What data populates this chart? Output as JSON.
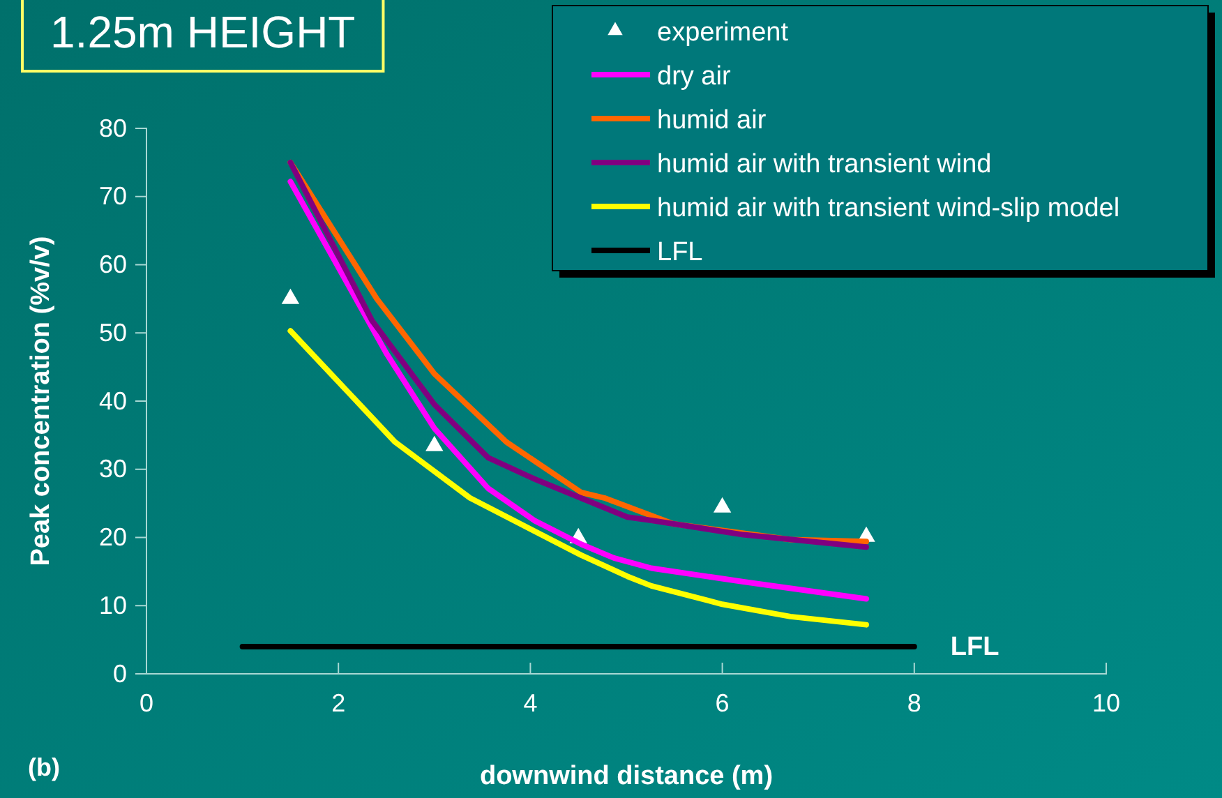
{
  "chart_data": {
    "type": "line",
    "title": "1.25m HEIGHT",
    "xlabel": "downwind distance (m)",
    "ylabel": "Peak concentration (%v/v)",
    "xlim": [
      0,
      10
    ],
    "xticks": [
      0,
      2,
      4,
      6,
      8,
      10
    ],
    "ylim": [
      0,
      80
    ],
    "yticks": [
      0,
      10,
      20,
      30,
      40,
      50,
      60,
      70,
      80
    ],
    "grid": false,
    "legend": "top right",
    "line_style": "solid",
    "annotations": [
      "(b)",
      {
        "text": "LFL",
        "x": 8,
        "y": 4
      }
    ],
    "series": [
      {
        "name": "experiment",
        "type": "scatter",
        "marker": "triangle",
        "color": "#ffffff",
        "x": [
          1.5,
          3,
          4.5,
          6,
          7.5
        ],
        "values": [
          55,
          33.4,
          19.9,
          24.4,
          20.1
        ]
      },
      {
        "name": "dry air",
        "color": "#ff00ff",
        "x": [
          1.5,
          2.5,
          3,
          3.56,
          4.04,
          4.53,
          4.87,
          5.26,
          6.22,
          7.5
        ],
        "values": [
          72.2,
          47,
          36,
          27.2,
          22.5,
          19,
          17,
          15.5,
          13.5,
          11
        ]
      },
      {
        "name": "humid air",
        "color": "#ff6600",
        "x": [
          1.5,
          2.4,
          3,
          3.75,
          4.53,
          4.77,
          5.49,
          6.71,
          7.5
        ],
        "values": [
          75,
          55,
          44,
          34,
          26.6,
          25.8,
          22,
          19.7,
          19.4
        ]
      },
      {
        "name": "humid air with transient wind",
        "color": "#800080",
        "x": [
          1.5,
          2.35,
          3,
          3.56,
          4.04,
          5.01,
          5.26,
          6.22,
          7.5
        ],
        "values": [
          75,
          51.8,
          39.5,
          31.7,
          28.6,
          23,
          22.5,
          20.4,
          18.6
        ]
      },
      {
        "name": "humid air with transient wind-slip model",
        "color": "#ffff00",
        "x": [
          1.5,
          2.59,
          3.37,
          4.53,
          5.01,
          5.26,
          6,
          6.71,
          7.5
        ],
        "values": [
          50.3,
          34,
          25.8,
          17.4,
          14.3,
          12.9,
          10.2,
          8.4,
          7.2
        ]
      },
      {
        "name": "LFL",
        "color": "#000000",
        "x": [
          1,
          8
        ],
        "values": [
          4,
          4
        ]
      }
    ]
  }
}
